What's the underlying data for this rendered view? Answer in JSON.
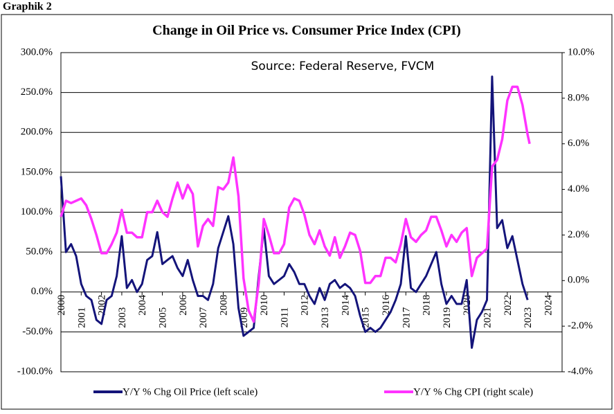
{
  "header": "Graphik 2",
  "chart_data": {
    "type": "line",
    "title": "Change in Oil Price vs. Consumer Price Index (CPI)",
    "annotation": "Source:  Federal Reserve, FVCM",
    "x": [
      2000,
      2000.25,
      2000.5,
      2000.75,
      2001,
      2001.25,
      2001.5,
      2001.75,
      2002,
      2002.25,
      2002.5,
      2002.75,
      2003,
      2003.25,
      2003.5,
      2003.75,
      2004,
      2004.25,
      2004.5,
      2004.75,
      2005,
      2005.25,
      2005.5,
      2005.75,
      2006,
      2006.25,
      2006.5,
      2006.75,
      2007,
      2007.25,
      2007.5,
      2007.75,
      2008,
      2008.25,
      2008.5,
      2008.75,
      2009,
      2009.25,
      2009.5,
      2009.75,
      2010,
      2010.25,
      2010.5,
      2010.75,
      2011,
      2011.25,
      2011.5,
      2011.75,
      2012,
      2012.25,
      2012.5,
      2012.75,
      2013,
      2013.25,
      2013.5,
      2013.75,
      2014,
      2014.25,
      2014.5,
      2014.75,
      2015,
      2015.25,
      2015.5,
      2015.75,
      2016,
      2016.25,
      2016.5,
      2016.75,
      2017,
      2017.25,
      2017.5,
      2017.75,
      2018,
      2018.25,
      2018.5,
      2018.75,
      2019,
      2019.25,
      2019.5,
      2019.75,
      2020,
      2020.25,
      2020.5,
      2020.75,
      2021,
      2021.25,
      2021.5,
      2021.75,
      2022,
      2022.25,
      2022.5,
      2022.75,
      2023,
      2023.1
    ],
    "xlim": [
      2000,
      2024.7
    ],
    "xticks": [
      2000,
      2001,
      2002,
      2003,
      2004,
      2005,
      2006,
      2007,
      2008,
      2009,
      2010,
      2011,
      2012,
      2013,
      2014,
      2015,
      2016,
      2017,
      2018,
      2019,
      2020,
      2021,
      2022,
      2023,
      2024
    ],
    "ylim": [
      -100,
      300
    ],
    "yticks": [
      {
        "value": -100,
        "label": "-100.0%"
      },
      {
        "value": -50,
        "label": "-50.0%"
      },
      {
        "value": 0,
        "label": "0.0%"
      },
      {
        "value": 50,
        "label": "50.0%"
      },
      {
        "value": 100,
        "label": "100.0%"
      },
      {
        "value": 150,
        "label": "150.0%"
      },
      {
        "value": 200,
        "label": "200.0%"
      },
      {
        "value": 250,
        "label": "250.0%"
      },
      {
        "value": 300,
        "label": "300.0%"
      }
    ],
    "y2lim": [
      -4,
      10
    ],
    "y2ticks": [
      {
        "value": -4,
        "label": "-4.0%"
      },
      {
        "value": -2,
        "label": "-2.0%"
      },
      {
        "value": 0,
        "label": "0.0%"
      },
      {
        "value": 2,
        "label": "2.0%"
      },
      {
        "value": 4,
        "label": "4.0%"
      },
      {
        "value": 6,
        "label": "6.0%"
      },
      {
        "value": 8,
        "label": "8.0%"
      },
      {
        "value": 10,
        "label": "10.0%"
      }
    ],
    "grid": true,
    "series": [
      {
        "name": "Y/Y % Chg Oil Price (left scale)",
        "color": "#14147a",
        "values": [
          145,
          50,
          60,
          45,
          10,
          -5,
          -10,
          -35,
          -40,
          -10,
          -5,
          20,
          70,
          5,
          15,
          0,
          10,
          40,
          45,
          75,
          35,
          40,
          45,
          30,
          20,
          40,
          15,
          -5,
          -5,
          -10,
          10,
          55,
          75,
          95,
          60,
          -20,
          -55,
          -50,
          -45,
          20,
          80,
          20,
          10,
          15,
          20,
          35,
          25,
          10,
          10,
          -5,
          -15,
          5,
          -10,
          10,
          15,
          5,
          10,
          5,
          -5,
          -30,
          -50,
          -45,
          -50,
          -45,
          -35,
          -25,
          -10,
          10,
          70,
          5,
          0,
          10,
          20,
          35,
          50,
          10,
          -15,
          -5,
          -15,
          -15,
          15,
          -70,
          -35,
          -25,
          -10,
          270,
          80,
          90,
          55,
          70,
          40,
          10,
          -10,
          null
        ]
      },
      {
        "name": "Y/Y % Chg CPI (right scale)",
        "color": "#ff33ff",
        "axis": "y2",
        "values": [
          2.8,
          3.5,
          3.4,
          3.5,
          3.6,
          3.3,
          2.7,
          2.0,
          1.2,
          1.2,
          1.6,
          2.1,
          3.1,
          2.1,
          2.1,
          1.9,
          1.9,
          3.0,
          3.0,
          3.5,
          3.0,
          2.8,
          3.6,
          4.3,
          3.6,
          4.2,
          3.8,
          1.5,
          2.4,
          2.7,
          2.4,
          4.1,
          4.0,
          4.3,
          5.4,
          3.7,
          0.1,
          -1.3,
          -1.8,
          -0.1,
          2.7,
          2.0,
          1.2,
          1.2,
          1.6,
          3.2,
          3.6,
          3.5,
          2.9,
          2.0,
          1.6,
          2.2,
          1.5,
          1.1,
          1.9,
          1.0,
          1.5,
          2.1,
          2.0,
          1.3,
          -0.1,
          -0.1,
          0.2,
          0.2,
          1.0,
          1.0,
          0.8,
          1.6,
          2.7,
          1.9,
          1.7,
          2.0,
          2.2,
          2.8,
          2.8,
          2.2,
          1.5,
          2.0,
          1.7,
          2.1,
          2.3,
          0.2,
          1.0,
          1.2,
          1.4,
          5.0,
          5.3,
          6.2,
          7.9,
          8.5,
          8.5,
          7.7,
          6.4,
          6.0
        ]
      }
    ]
  }
}
